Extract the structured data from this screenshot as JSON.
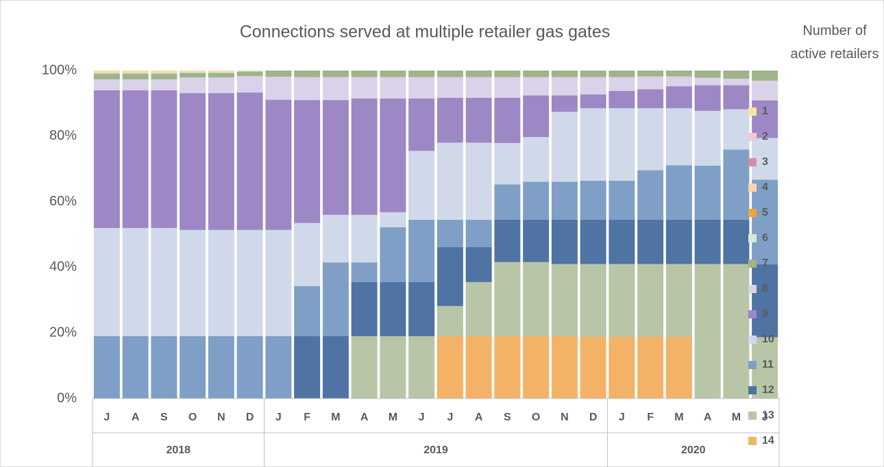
{
  "chart_data": {
    "type": "stacked_bar",
    "title": "Connections  served at multiple retailer gas gates",
    "legend_title": "Number of active retailers",
    "groups": [
      {
        "label": "2018",
        "categories": [
          "J",
          "A",
          "S",
          "O",
          "N",
          "D"
        ]
      },
      {
        "label": "2019",
        "categories": [
          "J",
          "F",
          "M",
          "A",
          "M",
          "J",
          "J",
          "A",
          "S",
          "O",
          "N",
          "D"
        ]
      },
      {
        "label": "2020",
        "categories": [
          "J",
          "F",
          "M",
          "A",
          "M",
          "J"
        ]
      }
    ],
    "ylim": [
      0,
      100
    ],
    "yticks": [
      {
        "value": 0,
        "label": "0%"
      },
      {
        "value": 20,
        "label": "20%"
      },
      {
        "value": 40,
        "label": "40%"
      },
      {
        "value": 60,
        "label": "60%"
      },
      {
        "value": 80,
        "label": "80%"
      },
      {
        "value": 100,
        "label": "100%"
      }
    ],
    "series": [
      {
        "name": "1",
        "color": "#f9e49c",
        "values": [
          0.3,
          0.3,
          0.3,
          0.2,
          0.2,
          0.1,
          0,
          0,
          0,
          0,
          0,
          0,
          0,
          0,
          0,
          0,
          0,
          0,
          0,
          0,
          0,
          0,
          0,
          0
        ]
      },
      {
        "name": "2",
        "color": "#f4c9d6",
        "values": [
          0,
          0,
          0,
          0,
          0,
          0,
          0,
          0,
          0,
          0,
          0,
          0,
          0,
          0,
          0,
          0,
          0,
          0,
          0,
          0,
          0,
          0,
          0,
          0
        ]
      },
      {
        "name": "3",
        "color": "#d48fa4",
        "values": [
          0,
          0,
          0,
          0,
          0,
          0,
          0,
          0,
          0,
          0,
          0,
          0,
          0,
          0,
          0,
          0,
          0,
          0,
          0,
          0,
          0,
          0,
          0,
          0
        ]
      },
      {
        "name": "4",
        "color": "#fad3a8",
        "values": [
          0.4,
          0.4,
          0.4,
          0.2,
          0.2,
          0,
          0,
          0,
          0,
          0,
          0,
          0,
          0,
          0,
          0,
          0,
          0,
          0,
          0,
          0,
          0,
          0,
          0,
          0
        ]
      },
      {
        "name": "5",
        "color": "#f0a33a",
        "values": [
          0,
          0,
          0,
          0,
          0,
          0,
          0,
          0,
          0,
          0,
          0,
          0,
          0,
          0,
          0,
          0,
          0,
          0,
          0,
          0,
          0,
          0,
          0,
          0
        ]
      },
      {
        "name": "6",
        "color": "#dbe7d4",
        "values": [
          0.2,
          0.2,
          0.2,
          0.3,
          0.3,
          0.2,
          0,
          0,
          0,
          0,
          0,
          0,
          0,
          0,
          0,
          0,
          0,
          0,
          0,
          0,
          0,
          0,
          0,
          0
        ]
      },
      {
        "name": "7",
        "color": "#9fb48a",
        "values": [
          1.8,
          1.8,
          1.8,
          1.4,
          1.4,
          1.4,
          1.9,
          2,
          2,
          2,
          2,
          2,
          2,
          2,
          2,
          2,
          2,
          2,
          2,
          1.8,
          1.8,
          2.2,
          2.5,
          3.1
        ]
      },
      {
        "name": "8",
        "color": "#d9d2e9",
        "values": [
          3.3,
          3.3,
          3.3,
          4.8,
          4.8,
          5,
          7,
          7,
          7,
          6.5,
          6.5,
          6.5,
          6.3,
          6.3,
          6.3,
          5.6,
          5.6,
          5.3,
          4.2,
          3.9,
          3,
          2.3,
          2,
          6
        ]
      },
      {
        "name": "9",
        "color": "#9e87c5",
        "values": [
          42,
          42,
          42,
          41.7,
          41.7,
          41.9,
          39.7,
          37.5,
          35,
          35.5,
          34.7,
          16,
          13.7,
          13.7,
          13.8,
          12.7,
          5,
          4.2,
          5.3,
          5.8,
          6.7,
          7.8,
          7.3,
          11.5
        ]
      },
      {
        "name": "10",
        "color": "#cfd9ea",
        "values": [
          33,
          33,
          33,
          32.4,
          32.4,
          32.4,
          32.4,
          19.2,
          14.5,
          14.5,
          4.6,
          21,
          23.5,
          23.5,
          12.6,
          13.6,
          21.3,
          22.1,
          22.1,
          18.9,
          17.4,
          16.7,
          12.3,
          12.7
        ]
      },
      {
        "name": "11",
        "color": "#7f9fc6",
        "values": [
          19,
          19,
          19,
          19,
          19,
          19,
          19,
          15.3,
          22.5,
          6,
          16.7,
          19,
          8.3,
          8.3,
          10.8,
          11.6,
          11.6,
          11.9,
          11.9,
          15.1,
          16.6,
          16.5,
          21.4,
          25.8
        ]
      },
      {
        "name": "12",
        "color": "#4f73a3",
        "values": [
          0,
          0,
          0,
          0,
          0,
          0,
          0,
          19,
          19,
          16.5,
          16.5,
          16.5,
          18,
          10.7,
          12.9,
          12.9,
          13.5,
          13.5,
          13.5,
          13.5,
          13.5,
          13.5,
          13.5,
          22.2
        ]
      },
      {
        "name": "13",
        "color": "#b8c5a6",
        "values": [
          0,
          0,
          0,
          0,
          0,
          0,
          0,
          0,
          0,
          19,
          19,
          19,
          9.2,
          16.5,
          22.6,
          22.6,
          22,
          22.2,
          22.2,
          22.2,
          22.2,
          41,
          41,
          18.7
        ]
      },
      {
        "name": "14",
        "color": "#f4b266",
        "values": [
          0,
          0,
          0,
          0,
          0,
          0,
          0,
          0,
          0,
          0,
          0,
          0,
          19,
          19,
          19,
          19,
          19,
          18.8,
          18.8,
          18.8,
          18.8,
          0,
          0,
          0
        ]
      }
    ]
  }
}
